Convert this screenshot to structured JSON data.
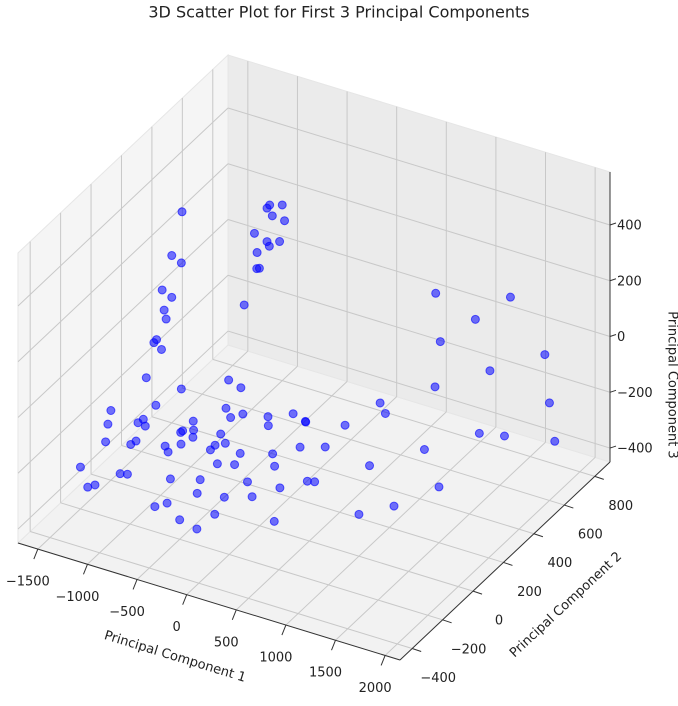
{
  "chart_data": {
    "type": "scatter3d",
    "title": "3D Scatter Plot for First 3 Principal Components",
    "xlabel": "Principal Component 1",
    "ylabel": "Principal Component 2",
    "zlabel": "Principal Component 3",
    "xlim": [
      -1700,
      2150
    ],
    "ylim": [
      -480,
      900
    ],
    "zlim": [
      -450,
      590
    ],
    "xticks": [
      {
        "value": -1500,
        "label": "−1500"
      },
      {
        "value": -1000,
        "label": "−1000"
      },
      {
        "value": -500,
        "label": "−500"
      },
      0,
      500,
      1000,
      1500,
      2000
    ],
    "yticks": [
      {
        "value": -400,
        "label": "−400"
      },
      {
        "value": -200,
        "label": "−200"
      },
      0,
      200,
      400,
      600,
      800
    ],
    "zticks": [
      {
        "value": -400,
        "label": "−400"
      },
      {
        "value": -200,
        "label": "−200"
      },
      0,
      200,
      400
    ],
    "grid": true,
    "series": [
      {
        "color": "#0000ff",
        "x": [
          -1400,
          -1300,
          -1200,
          -1100,
          -1000,
          -900,
          -800,
          -700,
          -600,
          -500,
          -400,
          -300,
          -200,
          -100,
          0,
          100,
          200,
          -1450,
          -1350,
          -1250,
          -1150,
          -1050,
          -950,
          -850,
          -750,
          -650,
          -550,
          -450,
          -350,
          -250,
          -150,
          -50,
          50,
          150,
          250,
          -1400,
          -1300,
          -1200,
          -1100,
          -1000,
          -900,
          -800,
          -700,
          -600,
          -500,
          -400,
          -300,
          -200,
          -100,
          0,
          300,
          400,
          -1500,
          -1500,
          -650,
          -950,
          -350,
          -1250,
          -750,
          -450,
          -1500,
          -1480,
          -1450,
          -1500,
          -1520,
          -1480,
          -1500,
          -1550,
          -1450,
          -1500,
          -1000,
          -1050,
          -950,
          -1100,
          -900,
          -1000,
          -1050,
          -950,
          -1000,
          -1100,
          -900,
          -1000,
          -1000,
          400,
          600,
          800,
          1000,
          1200,
          1400,
          1600,
          1800,
          2000,
          1500,
          1700,
          900,
          1100,
          1300,
          700,
          1900,
          500,
          1200,
          1000
        ],
        "y": [
          -100,
          0,
          100,
          -200,
          50,
          150,
          -100,
          200,
          0,
          100,
          -150,
          250,
          50,
          150,
          -50,
          200,
          300,
          200,
          -250,
          300,
          -50,
          250,
          -250,
          350,
          -200,
          300,
          -250,
          350,
          -50,
          -250,
          400,
          -200,
          100,
          0,
          150,
          100,
          -150,
          -300,
          200,
          -100,
          0,
          300,
          -50,
          200,
          -200,
          150,
          -100,
          350,
          -100,
          300,
          -100,
          100,
          0,
          -200,
          100,
          100,
          100,
          50,
          50,
          0,
          300,
          350,
          250,
          400,
          350,
          450,
          400,
          500,
          300,
          350,
          700,
          650,
          750,
          700,
          650,
          800,
          750,
          600,
          650,
          800,
          750,
          700,
          550,
          300,
          400,
          200,
          500,
          300,
          600,
          400,
          700,
          600,
          200,
          500,
          600,
          700,
          800,
          700,
          700,
          500,
          100,
          0
        ],
        "z": [
          -250,
          -300,
          -200,
          -280,
          -320,
          -250,
          -200,
          -300,
          -350,
          -260,
          -300,
          -220,
          -340,
          -280,
          -320,
          -260,
          -300,
          -180,
          -330,
          -250,
          -180,
          -350,
          -240,
          -200,
          -360,
          -180,
          -300,
          -320,
          -240,
          -360,
          -300,
          -250,
          -360,
          -220,
          -340,
          -350,
          -150,
          -280,
          -380,
          -150,
          -380,
          -270,
          -160,
          -230,
          -380,
          -170,
          -390,
          -250,
          -190,
          -230,
          -350,
          -300,
          -200,
          -300,
          -300,
          -270,
          -280,
          -230,
          -240,
          -210,
          -100,
          -50,
          -80,
          0,
          50,
          100,
          150,
          250,
          -130,
          -20,
          100,
          150,
          80,
          50,
          120,
          180,
          200,
          60,
          30,
          130,
          160,
          220,
          -50,
          -200,
          -150,
          -250,
          -100,
          -200,
          -50,
          -150,
          0,
          -100,
          -250,
          -200,
          0,
          50,
          100,
          100,
          -300,
          -250,
          -300,
          -300
        ]
      }
    ]
  }
}
